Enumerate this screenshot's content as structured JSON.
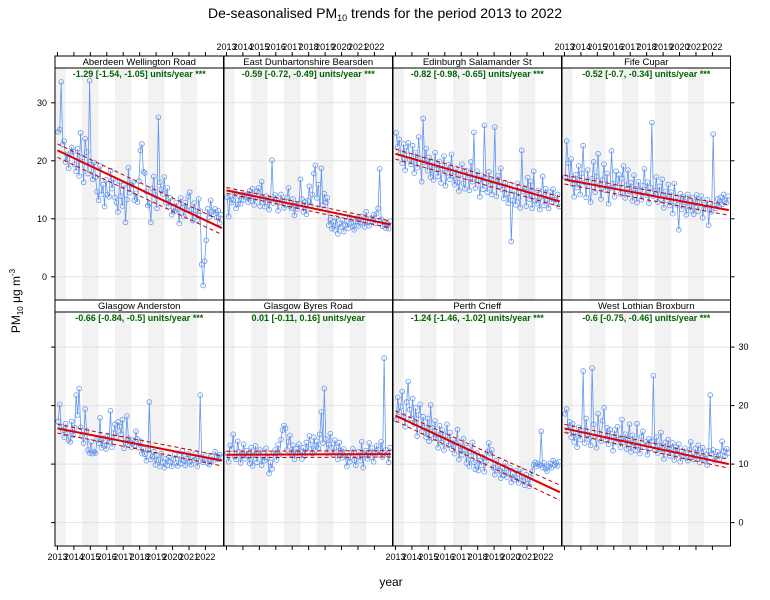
{
  "chart_data": {
    "type": "line",
    "title": "De-seasonalised PM10 trends for the period 2013 to 2022",
    "title_main": "De-seasonalised PM",
    "title_sub": "10",
    "title_rest": " trends for the period 2013 to 2022",
    "xlabel": "year",
    "ylabel_main": "PM",
    "ylabel_sub": "10",
    "ylabel_unit": " μg m",
    "ylabel_sup": "-3",
    "ylim": [
      -4,
      36
    ],
    "yticks": [
      0,
      10,
      20,
      30
    ],
    "xlim": [
      2012.85,
      2023.1
    ],
    "xticks": [
      2013,
      2014,
      2015,
      2016,
      2017,
      2018,
      2019,
      2020,
      2021,
      2022
    ],
    "xtick_labels": [
      "2013",
      "2014",
      "2015",
      "2016",
      "2017",
      "2018",
      "2019",
      "2020",
      "2021",
      "2022"
    ],
    "layout": {
      "columns": 4,
      "rows": 2
    },
    "colors": {
      "data": "#6495ED",
      "trend": "#E00000",
      "trend_ci": "#C00000",
      "stat_text": "#006400",
      "band": "#F2F2F2",
      "grid": "#E2E2E2"
    },
    "series": [
      {
        "name": "Aberdeen Wellington Road",
        "stat": "-1.29 [-1.54, -1.05] units/year ***",
        "trend": {
          "x": [
            2013.0,
            2023.0
          ],
          "y": [
            21.8,
            8.4
          ]
        },
        "ci_lower": [
          20.6,
          7.3
        ],
        "ci_upper": [
          22.9,
          9.6
        ],
        "values": [
          25,
          25.4,
          33.6,
          22.8,
          23.4,
          19.8,
          21.1,
          18.7,
          21.3,
          22.3,
          21.6,
          19.4,
          18.2,
          22.1,
          17.4,
          24.8,
          20.6,
          16.3,
          23.8,
          21.5,
          17.8,
          33.8,
          19.4,
          16.8,
          19.7,
          17.2,
          14.7,
          13.2,
          19.1,
          14.2,
          15.9,
          12.1,
          16.7,
          14.2,
          13.8,
          18.3,
          15.2,
          16.9,
          13.7,
          12.8,
          11.2,
          16.4,
          13.9,
          12.2,
          15.8,
          9.4,
          13.3,
          18.8,
          14.5,
          15.9,
          16.3,
          13.2,
          14.4,
          12.9,
          16.5,
          21.8,
          22.9,
          18.1,
          17.9,
          14.7,
          12.3,
          12.6,
          9.4,
          15.2,
          17.3,
          14.1,
          11.8,
          27.5,
          16.3,
          15.1,
          14.3,
          17.2,
          12.8,
          15.3,
          12.1,
          13.6,
          10.7,
          11.9,
          11.3,
          12.8,
          11.7,
          9.2,
          13.6,
          11.9,
          10.4,
          12.8,
          11.5,
          13.8,
          14.6,
          11.6,
          9.7,
          12.7,
          11.4,
          9.8,
          13.4,
          11.3,
          2.1,
          -1.5,
          2.7,
          6.3,
          11.7,
          10.3,
          13.2,
          11.2,
          10.8,
          11.7,
          10.2,
          11.4,
          9.3,
          10.7
        ]
      },
      {
        "name": "East Dunbartonshire Bearsden",
        "stat": "-0.59 [-0.72, -0.49] units/year ***",
        "trend": {
          "x": [
            2013.0,
            2023.0
          ],
          "y": [
            14.9,
            9.0
          ]
        },
        "ci_lower": [
          14.4,
          8.4
        ],
        "ci_upper": [
          15.4,
          9.6
        ],
        "values": [
          13.7,
          10.4,
          13.9,
          12.8,
          13.2,
          14.6,
          11.8,
          12.5,
          13.9,
          12.6,
          14.1,
          13.3,
          14.2,
          13.7,
          12.9,
          14.8,
          13.1,
          15.2,
          12.4,
          13.6,
          14.7,
          15.3,
          12.2,
          16.4,
          13.5,
          12.1,
          13.9,
          12.8,
          11.6,
          13.4,
          20.1,
          12.7,
          14.1,
          13.3,
          11.4,
          12.8,
          14.2,
          13.1,
          11.9,
          12.4,
          13.7,
          15.3,
          12.2,
          11.8,
          13.4,
          10.6,
          12.3,
          11.7,
          12.6,
          16.8,
          13.4,
          11.2,
          12.9,
          10.8,
          13.1,
          15.6,
          12.3,
          14.2,
          17.8,
          19.2,
          13.6,
          15.9,
          11.8,
          18.7,
          12.4,
          14.3,
          12.8,
          13.6,
          8.9,
          9.8,
          8.3,
          9.5,
          8.1,
          10.2,
          7.4,
          9.1,
          8.6,
          9.8,
          7.8,
          8.9,
          9.5,
          8.4,
          10.3,
          9.2,
          8.7,
          8.1,
          9.6,
          10.1,
          8.8,
          9.3,
          10.4,
          9.7,
          8.6,
          11.2,
          9.4,
          8.8,
          10.1,
          9.6,
          10.7,
          9.2,
          10.9,
          11.8,
          18.6,
          9.9,
          8.7,
          9.5,
          8.4,
          9.1,
          8.3,
          9.6
        ]
      },
      {
        "name": "Edinburgh Salamander St",
        "stat": "-0.82 [-0.98, -0.65] units/year ***",
        "trend": {
          "x": [
            2013.0,
            2023.0
          ],
          "y": [
            21.2,
            13.0
          ]
        },
        "ci_lower": [
          20.3,
          12.1
        ],
        "ci_upper": [
          22.0,
          13.8
        ],
        "values": [
          24.8,
          22.4,
          23.7,
          21.3,
          19.6,
          22.9,
          18.4,
          21.7,
          23.1,
          20.2,
          19.4,
          22.6,
          17.9,
          21.4,
          18.8,
          24.1,
          20.3,
          16.4,
          27.3,
          19.7,
          22.1,
          18.3,
          20.6,
          17.2,
          19.8,
          16.7,
          21.4,
          18.5,
          17.3,
          19.9,
          16.2,
          18.6,
          20.8,
          15.7,
          17.9,
          19.3,
          16.8,
          21.1,
          17.4,
          15.9,
          18.7,
          16.3,
          14.8,
          17.6,
          19.4,
          16.1,
          15.2,
          18.3,
          17.1,
          14.9,
          19.8,
          16.4,
          24.9,
          15.3,
          18.2,
          16.7,
          13.8,
          17.5,
          15.1,
          26.1,
          16.9,
          14.6,
          18.1,
          15.8,
          14.2,
          16.6,
          25.8,
          13.9,
          17.4,
          15.6,
          18.7,
          15.1,
          13.5,
          16.2,
          14.3,
          12.7,
          15.9,
          6.1,
          13.2,
          14.8,
          12.4,
          16.1,
          13.6,
          11.9,
          21.8,
          14.7,
          15.3,
          12.2,
          17.1,
          13.4,
          16.4,
          11.8,
          18.2,
          13.1,
          12.6,
          14.9,
          11.6,
          13.8,
          17.3,
          12.3,
          15.2,
          13.4,
          11.8,
          14.6,
          12.9,
          15.1,
          13.3,
          12.7,
          14.2,
          12.1
        ]
      },
      {
        "name": "Fife Cupar",
        "stat": "-0.52 [-0.7, -0.34] units/year ***",
        "trend": {
          "x": [
            2013.0,
            2023.0
          ],
          "y": [
            16.8,
            11.5
          ]
        },
        "ci_lower": [
          16.0,
          10.6
        ],
        "ci_upper": [
          17.5,
          12.4
        ],
        "values": [
          17.2,
          23.4,
          19.6,
          16.8,
          20.3,
          15.9,
          13.8,
          17.6,
          15.4,
          19.1,
          14.2,
          17.8,
          22.6,
          16.3,
          13.7,
          18.4,
          15.6,
          12.9,
          16.9,
          19.8,
          14.6,
          17.3,
          21.2,
          15.8,
          13.4,
          16.7,
          19.4,
          14.9,
          17.8,
          12.6,
          15.3,
          21.7,
          16.1,
          13.8,
          18.2,
          15.4,
          17.6,
          14.3,
          16.9,
          19.1,
          13.6,
          15.8,
          18.4,
          14.7,
          16.2,
          13.1,
          17.5,
          15.2,
          12.8,
          16.4,
          14.9,
          13.3,
          15.7,
          18.6,
          14.1,
          16.3,
          12.7,
          15.4,
          26.6,
          13.9,
          14.8,
          17.2,
          12.9,
          15.6,
          13.4,
          16.8,
          11.9,
          14.7,
          13.2,
          15.9,
          12.3,
          14.6,
          10.9,
          16.1,
          13.7,
          12.4,
          8.1,
          14.3,
          11.6,
          13.8,
          12.9,
          10.7,
          14.2,
          12.1,
          11.4,
          13.6,
          10.8,
          12.7,
          14.1,
          11.3,
          12.8,
          13.9,
          10.2,
          12.4,
          11.7,
          13.3,
          8.9,
          12.6,
          11.2,
          24.6,
          12.3,
          11.8,
          13.4,
          12.1,
          13.7,
          12.5,
          14.2,
          13.1,
          12.8,
          13.9
        ]
      },
      {
        "name": "Glasgow Anderston",
        "stat": "-0.66 [-0.84, -0.5] units/year ***",
        "trend": {
          "x": [
            2013.0,
            2023.0
          ],
          "y": [
            16.1,
            10.6
          ]
        },
        "ci_lower": [
          15.3,
          9.7
        ],
        "ci_upper": [
          16.8,
          11.4
        ],
        "values": [
          17.3,
          20.2,
          16.4,
          15.8,
          14.6,
          16.9,
          15.2,
          14.1,
          13.8,
          17.3,
          14.9,
          16.2,
          21.8,
          18.4,
          22.9,
          16.3,
          14.8,
          13.6,
          19.4,
          15.7,
          12.4,
          11.9,
          13.8,
          11.8,
          12.1,
          11.9,
          14.2,
          13.6,
          17.9,
          12.8,
          14.4,
          13.1,
          12.6,
          14.9,
          13.7,
          19.1,
          12.9,
          15.3,
          16.8,
          14.6,
          17.2,
          16.4,
          15.1,
          17.6,
          12.7,
          13.6,
          18.2,
          14.4,
          13.8,
          12.9,
          14.1,
          13.2,
          15.6,
          14.3,
          12.8,
          13.9,
          11.8,
          12.6,
          11.7,
          10.6,
          12.4,
          20.6,
          10.8,
          11.3,
          12.1,
          9.9,
          11.4,
          10.7,
          9.6,
          11.8,
          10.3,
          9.4,
          10.9,
          9.8,
          11.2,
          10.4,
          9.6,
          10.8,
          11.6,
          10.2,
          9.7,
          11.4,
          10.1,
          12.3,
          10.6,
          9.8,
          10.9,
          11.7,
          10.4,
          9.9,
          11.1,
          10.7,
          11.8,
          9.6,
          10.5,
          21.8,
          11.2,
          10.3,
          10.8,
          11.4,
          10.2,
          9.9,
          10.7,
          11.3,
          10.6,
          12.1,
          11.4,
          10.8,
          11.6,
          11.2
        ]
      },
      {
        "name": "Glasgow Byres Road",
        "stat": "0.01 [-0.11, 0.16] units/year",
        "trend": {
          "x": [
            2013.0,
            2023.0
          ],
          "y": [
            11.6,
            11.7
          ]
        },
        "ci_lower": [
          11.1,
          11.2
        ],
        "ci_upper": [
          12.2,
          12.3
        ],
        "values": [
          11.8,
          10.4,
          13.2,
          12.6,
          15.1,
          11.3,
          10.8,
          13.9,
          12.1,
          10.2,
          11.7,
          13.4,
          10.9,
          12.3,
          11.4,
          10.1,
          12.8,
          9.7,
          11.6,
          13.1,
          10.3,
          11.9,
          12.4,
          9.8,
          11.2,
          10.6,
          12.7,
          11.1,
          8.4,
          10.3,
          9.2,
          11.8,
          12.4,
          10.7,
          13.3,
          11.6,
          14.2,
          15.8,
          16.6,
          16.1,
          12.4,
          13.8,
          14.9,
          11.7,
          13.2,
          10.8,
          12.6,
          11.9,
          13.4,
          12.2,
          10.9,
          12.8,
          11.4,
          13.7,
          12.1,
          14.8,
          13.3,
          11.8,
          14.6,
          12.4,
          13.9,
          12.7,
          15.1,
          18.9,
          13.6,
          22.9,
          14.3,
          11.9,
          13.4,
          15.2,
          12.8,
          11.6,
          14.1,
          12.9,
          10.8,
          13.7,
          12.3,
          11.1,
          12.6,
          11.4,
          9.6,
          11.2,
          10.4,
          11.9,
          12.6,
          10.7,
          9.8,
          11.3,
          12.1,
          10.6,
          13.8,
          9.4,
          11.7,
          12.3,
          10.9,
          13.6,
          11.2,
          12.7,
          10.4,
          11.9,
          13.1,
          12.4,
          11.6,
          13.8,
          11.2,
          28.1,
          12.4,
          11.7,
          10.3,
          12.8
        ]
      },
      {
        "name": "Perth Crieff",
        "stat": "-1.24 [-1.46, -1.02] units/year ***",
        "trend": {
          "x": [
            2013.0,
            2023.0
          ],
          "y": [
            18.3,
            5.2
          ]
        },
        "ci_lower": [
          17.4,
          3.8
        ],
        "ci_upper": [
          19.1,
          6.4
        ],
        "values": [
          17.6,
          21.4,
          18.9,
          19.8,
          22.4,
          18.2,
          16.4,
          20.6,
          24.1,
          19.3,
          17.8,
          21.2,
          16.9,
          19.6,
          14.8,
          18.4,
          20.2,
          15.6,
          18.1,
          16.3,
          14.6,
          17.8,
          13.9,
          20.1,
          16.2,
          14.4,
          17.4,
          15.1,
          12.8,
          16.6,
          13.7,
          15.8,
          12.4,
          14.9,
          16.8,
          13.2,
          15.4,
          12.6,
          14.2,
          11.8,
          13.6,
          15.9,
          10.8,
          13.1,
          11.6,
          14.3,
          12.4,
          10.2,
          12.8,
          9.6,
          11.4,
          13.7,
          10.3,
          9.1,
          11.9,
          8.9,
          10.6,
          9.8,
          11.2,
          8.7,
          10.4,
          12.1,
          13.6,
          11.8,
          12.4,
          9.4,
          8.2,
          10.6,
          9.7,
          8.9,
          7.6,
          9.3,
          8.1,
          10.2,
          7.8,
          8.6,
          9.4,
          6.9,
          8.4,
          7.3,
          8.9,
          7.6,
          6.8,
          9.1,
          7.9,
          7.1,
          6.4,
          8.2,
          7.4,
          6.2,
          7.8,
          8.8,
          9.9,
          10.3,
          9.6,
          10.1,
          9.8,
          15.6,
          9.4,
          10.2,
          9.2,
          8.8,
          9.6,
          10.1,
          9.4,
          10.6,
          9.8,
          10.2,
          9.7,
          10.4
        ]
      },
      {
        "name": "West Lothian Broxburn",
        "stat": "-0.6 [-0.75, -0.46] units/year ***",
        "trend": {
          "x": [
            2013.0,
            2023.0
          ],
          "y": [
            16.1,
            10.0
          ]
        },
        "ci_lower": [
          15.4,
          9.3
        ],
        "ci_upper": [
          16.8,
          10.8
        ],
        "values": [
          18.6,
          19.4,
          15.8,
          17.2,
          14.6,
          16.9,
          13.8,
          15.4,
          12.9,
          16.3,
          14.2,
          15.7,
          25.9,
          13.6,
          17.8,
          15.1,
          14.3,
          13.2,
          26.4,
          16.8,
          14.7,
          12.8,
          18.6,
          15.2,
          13.9,
          17.4,
          19.6,
          14.1,
          16.2,
          13.4,
          15.9,
          14.6,
          12.3,
          15.8,
          13.7,
          16.4,
          14.2,
          12.9,
          17.6,
          13.8,
          15.1,
          12.6,
          14.4,
          16.8,
          12.1,
          14.9,
          13.6,
          12.4,
          16.9,
          13.2,
          11.8,
          14.7,
          15.6,
          12.9,
          13.8,
          11.6,
          14.3,
          12.7,
          13.9,
          25.1,
          12.4,
          14.6,
          11.9,
          13.2,
          15.4,
          12.6,
          10.9,
          13.7,
          12.1,
          14.2,
          11.4,
          12.8,
          13.6,
          10.7,
          12.9,
          11.8,
          13.4,
          10.4,
          12.2,
          11.3,
          12.7,
          11.1,
          10.6,
          12.4,
          13.8,
          11.2,
          10.8,
          12.6,
          11.4,
          13.2,
          10.3,
          11.9,
          12.8,
          10.9,
          11.6,
          9.8,
          12.3,
          21.8,
          11.7,
          12.4,
          10.6,
          11.3,
          12.1,
          10.8,
          11.6,
          13.9,
          12.2,
          11.4,
          12.6,
          11.9
        ]
      }
    ]
  }
}
